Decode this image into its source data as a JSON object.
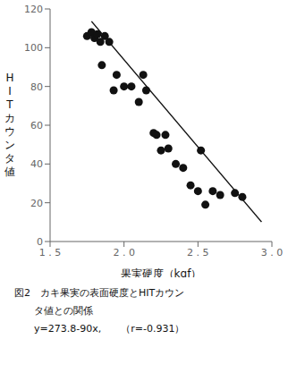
{
  "chart_data": {
    "type": "scatter",
    "xlabel": "果実硬度（kgf）",
    "ylabel": "HITカウンタ値",
    "annotations": [
      "図2　カキ果実の表面硬度とHITカウン",
      "　　タ値との関係",
      "　　y=273.8-90x,　　（r=-0.931）"
    ],
    "series": [
      {
        "type": "scatter",
        "color": "#111111",
        "x": [
          1.75,
          1.78,
          1.8,
          1.82,
          1.84,
          1.85,
          1.87,
          1.9,
          1.93,
          1.95,
          2.0,
          2.05,
          2.1,
          2.13,
          2.15,
          2.2,
          2.22,
          2.25,
          2.28,
          2.3,
          2.35,
          2.4,
          2.45,
          2.5,
          2.52,
          2.55,
          2.6,
          2.65,
          2.75,
          2.8
        ],
        "values": [
          106,
          108,
          105,
          107,
          103,
          91,
          106,
          103,
          78,
          86,
          80,
          80,
          72,
          86,
          78,
          56,
          55,
          47,
          55,
          48,
          40,
          38,
          29,
          26,
          47,
          19,
          26,
          24,
          25,
          23
        ]
      },
      {
        "type": "line",
        "color": "#111111",
        "x": [
          1.78,
          2.93
        ],
        "values": [
          113.6,
          10.1
        ]
      }
    ],
    "xlim": [
      1.5,
      3.0
    ],
    "ylim": [
      0,
      120
    ],
    "xticks": [
      {
        "value": 1.5,
        "label": "1 . 5"
      },
      {
        "value": 2.0,
        "label": "2 . 0"
      },
      {
        "value": 2.5,
        "label": "2 . 5"
      },
      {
        "value": 3.0,
        "label": "3 . 0"
      }
    ],
    "yticks": [
      0,
      20,
      40,
      60,
      80,
      100,
      120
    ],
    "grid": false
  }
}
